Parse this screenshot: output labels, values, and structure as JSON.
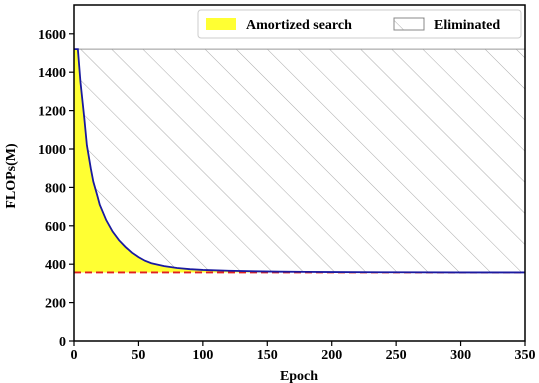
{
  "chart_data": {
    "type": "area",
    "xlabel": "Epoch",
    "ylabel": "FLOPs(M)",
    "xlim": [
      0,
      350
    ],
    "ylim": [
      0,
      1750
    ],
    "xticks": [
      "0",
      "50",
      "100",
      "150",
      "200",
      "250",
      "300",
      "350"
    ],
    "yticks": [
      "0",
      "200",
      "400",
      "600",
      "800",
      "1000",
      "1200",
      "1400",
      "1600"
    ],
    "grid": false,
    "legend_placement": "top-right",
    "legend": [
      {
        "label": "Amortized search",
        "style": "yellow-fill"
      },
      {
        "label": "Eliminated",
        "style": "hatch"
      }
    ],
    "baseline_flops": 1520,
    "target_flops": 357,
    "series": [
      {
        "kind": "flops-curve",
        "color": "#1a1aa0",
        "x": [
          0,
          3,
          5,
          8,
          10,
          13,
          15,
          18,
          20,
          25,
          30,
          35,
          40,
          45,
          50,
          55,
          60,
          70,
          80,
          90,
          100,
          120,
          140,
          160,
          180,
          200,
          250,
          300,
          350
        ],
        "y": [
          1520,
          1520,
          1350,
          1160,
          1020,
          900,
          830,
          760,
          710,
          630,
          570,
          525,
          490,
          460,
          437,
          418,
          405,
          390,
          380,
          374,
          370,
          366,
          363,
          361,
          360,
          359,
          358,
          357,
          357
        ]
      }
    ],
    "colors": {
      "amortized_fill": "#ffff33",
      "curve": "#1a1aa0",
      "target_line": "#e02020",
      "hatch": "#aaaaaa",
      "baseline_line": "#999999"
    }
  }
}
